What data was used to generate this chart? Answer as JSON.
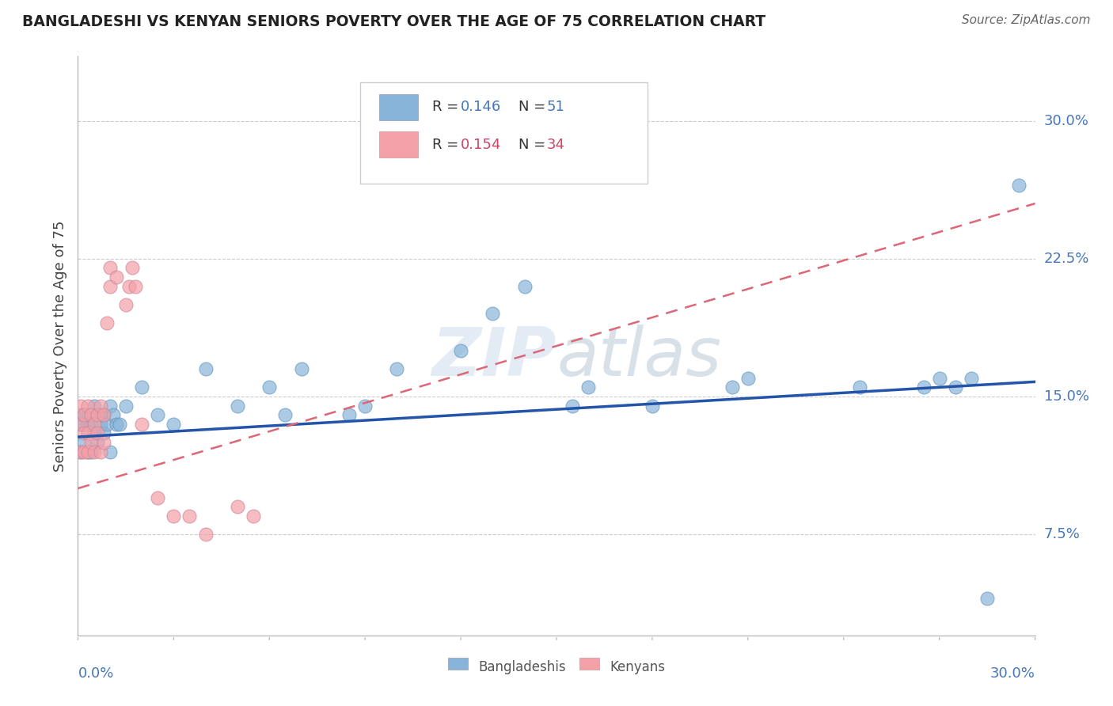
{
  "title": "BANGLADESHI VS KENYAN SENIORS POVERTY OVER THE AGE OF 75 CORRELATION CHART",
  "source": "Source: ZipAtlas.com",
  "ylabel": "Seniors Poverty Over the Age of 75",
  "xlim": [
    0.0,
    0.3
  ],
  "ylim": [
    0.02,
    0.33
  ],
  "ytick_vals": [
    0.075,
    0.15,
    0.225,
    0.3
  ],
  "ytick_labels": [
    "7.5%",
    "15.0%",
    "22.5%",
    "30.0%"
  ],
  "blue_color": "#89B4D9",
  "pink_color": "#F4A0A8",
  "blue_line_color": "#2255AA",
  "pink_line_color": "#DD6677",
  "watermark": "ZIPAtlas",
  "bang_x": [
    0.001,
    0.001,
    0.001,
    0.002,
    0.002,
    0.002,
    0.003,
    0.003,
    0.003,
    0.004,
    0.004,
    0.005,
    0.005,
    0.005,
    0.006,
    0.006,
    0.007,
    0.007,
    0.008,
    0.009,
    0.01,
    0.01,
    0.011,
    0.012,
    0.015,
    0.02,
    0.025,
    0.03,
    0.035,
    0.04,
    0.05,
    0.055,
    0.06,
    0.07,
    0.08,
    0.09,
    0.1,
    0.11,
    0.12,
    0.13,
    0.155,
    0.16,
    0.18,
    0.21,
    0.25,
    0.265,
    0.27,
    0.275,
    0.28,
    0.285,
    0.295
  ],
  "bang_y": [
    0.13,
    0.14,
    0.12,
    0.135,
    0.14,
    0.12,
    0.13,
    0.125,
    0.14,
    0.135,
    0.12,
    0.13,
    0.145,
    0.12,
    0.135,
    0.13,
    0.14,
    0.135,
    0.14,
    0.135,
    0.145,
    0.12,
    0.14,
    0.14,
    0.145,
    0.155,
    0.14,
    0.135,
    0.16,
    0.16,
    0.145,
    0.17,
    0.17,
    0.155,
    0.16,
    0.14,
    0.165,
    0.17,
    0.17,
    0.21,
    0.145,
    0.15,
    0.145,
    0.155,
    0.16,
    0.155,
    0.155,
    0.155,
    0.155,
    0.04,
    0.26
  ],
  "ken_x": [
    0.001,
    0.001,
    0.001,
    0.002,
    0.002,
    0.003,
    0.003,
    0.003,
    0.004,
    0.004,
    0.005,
    0.005,
    0.005,
    0.006,
    0.006,
    0.007,
    0.007,
    0.007,
    0.008,
    0.008,
    0.009,
    0.009,
    0.01,
    0.01,
    0.011,
    0.012,
    0.013,
    0.015,
    0.016,
    0.017,
    0.02,
    0.03,
    0.055,
    0.06
  ],
  "ken_y": [
    0.13,
    0.145,
    0.12,
    0.14,
    0.13,
    0.145,
    0.13,
    0.12,
    0.14,
    0.125,
    0.135,
    0.145,
    0.12,
    0.14,
    0.13,
    0.145,
    0.135,
    0.12,
    0.14,
    0.125,
    0.18,
    0.19,
    0.22,
    0.21,
    0.205,
    0.22,
    0.22,
    0.19,
    0.21,
    0.22,
    0.13,
    0.085,
    0.085,
    0.08
  ]
}
